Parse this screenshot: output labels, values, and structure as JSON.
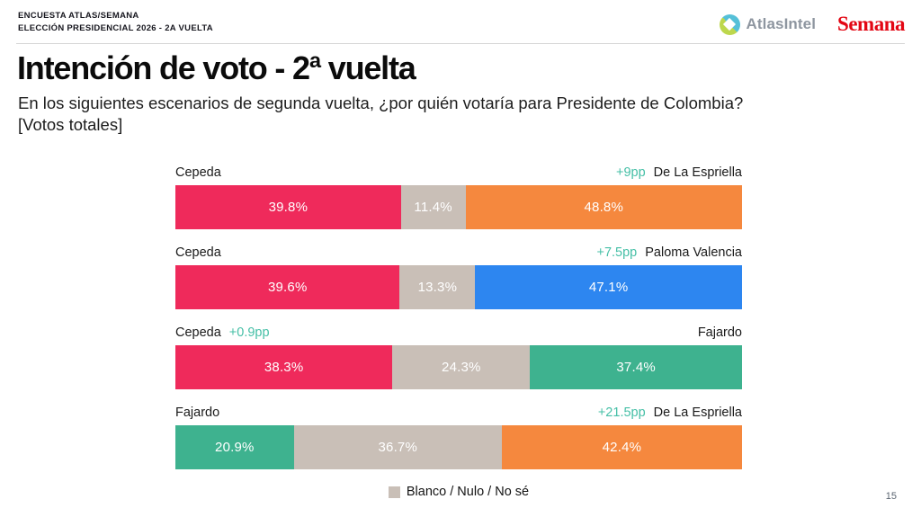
{
  "header": {
    "kicker_line1": "ENCUESTA ATLAS/SEMANA",
    "kicker_line2": "ELECCIÓN PRESIDENCIAL 2026 - 2a VUELTA",
    "atlas_logo_text": "AtlasIntel",
    "semana_logo_text": "Semana",
    "atlas_icon_colors": {
      "teal": "#55c0d8",
      "green": "#bdd74d"
    },
    "semana_color": "#e30613"
  },
  "title": "Intención de voto - 2ª vuelta",
  "subtitle_line1": "En los siguientes escenarios de segunda vuelta, ¿por quién votaría para Presidente de Colombia?",
  "subtitle_line2": "[Votos totales]",
  "chart_data": {
    "type": "bar",
    "variant": "horizontal-stacked",
    "unit": "percent",
    "title": "Intención de voto - 2ª vuelta",
    "subtitle": "En los siguientes escenarios de segunda vuelta, ¿por quién votaría para Presidente de Colombia? [Votos totales]",
    "lead_color": "#45bfa6",
    "middle_color": "#c9bfb7",
    "legend": {
      "label": "Blanco / Nulo / No sé",
      "color": "#c9bfb7",
      "position": "bottom-center"
    },
    "scenarios": [
      {
        "left": {
          "name": "Cepeda",
          "value": 39.8,
          "color": "#ef2a5b"
        },
        "middle": {
          "name": "Blanco / Nulo / No sé",
          "value": 11.4
        },
        "right": {
          "name": "De La Espriella",
          "value": 48.8,
          "color": "#f5883e",
          "lead": "+9pp"
        }
      },
      {
        "left": {
          "name": "Cepeda",
          "value": 39.6,
          "color": "#ef2a5b"
        },
        "middle": {
          "name": "Blanco / Nulo / No sé",
          "value": 13.3
        },
        "right": {
          "name": "Paloma Valencia",
          "value": 47.1,
          "color": "#2d86f0",
          "lead": "+7.5pp"
        }
      },
      {
        "left": {
          "name": "Cepeda",
          "value": 38.3,
          "color": "#ef2a5b",
          "lead": "+0.9pp"
        },
        "middle": {
          "name": "Blanco / Nulo / No sé",
          "value": 24.3
        },
        "right": {
          "name": "Fajardo",
          "value": 37.4,
          "color": "#3eb28f"
        }
      },
      {
        "left": {
          "name": "Fajardo",
          "value": 20.9,
          "color": "#3eb28f"
        },
        "middle": {
          "name": "Blanco / Nulo / No sé",
          "value": 36.7
        },
        "right": {
          "name": "De La Espriella",
          "value": 42.4,
          "color": "#f5883e",
          "lead": "+21.5pp"
        }
      }
    ]
  },
  "page_number": "15"
}
